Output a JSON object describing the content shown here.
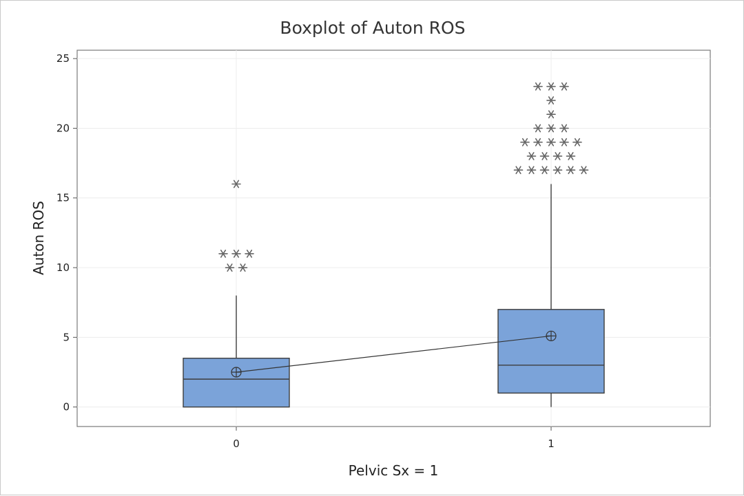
{
  "chart_data": {
    "type": "boxplot",
    "title": "Boxplot of Auton ROS",
    "xlabel": "Pelvic Sx = 1",
    "ylabel": "Auton ROS",
    "categories": [
      "0",
      "1"
    ],
    "ylim": [
      -1.4,
      25.6
    ],
    "yticks": [
      0,
      5,
      10,
      15,
      20,
      25
    ],
    "grid": true,
    "legend": "none",
    "mean_connect_line": true,
    "colors": {
      "box_fill": "#7ba3d9",
      "box_stroke": "#3c3c3c",
      "outlier": "#666666",
      "grid": "#ececec"
    },
    "boxes": [
      {
        "category": "0",
        "q1": 0,
        "median": 2,
        "q3": 3.5,
        "whisker_low": 0,
        "whisker_high": 8,
        "mean": 2.5,
        "outliers": [
          {
            "value": 16,
            "count": 1
          },
          {
            "value": 11,
            "count": 3
          },
          {
            "value": 10,
            "count": 2
          }
        ]
      },
      {
        "category": "1",
        "q1": 1,
        "median": 3,
        "q3": 7,
        "whisker_low": 0,
        "whisker_high": 16,
        "mean": 5.1,
        "outliers": [
          {
            "value": 23,
            "count": 3
          },
          {
            "value": 22,
            "count": 1
          },
          {
            "value": 21,
            "count": 1
          },
          {
            "value": 20,
            "count": 3
          },
          {
            "value": 19,
            "count": 5
          },
          {
            "value": 18,
            "count": 4
          },
          {
            "value": 17,
            "count": 6
          }
        ]
      }
    ]
  }
}
